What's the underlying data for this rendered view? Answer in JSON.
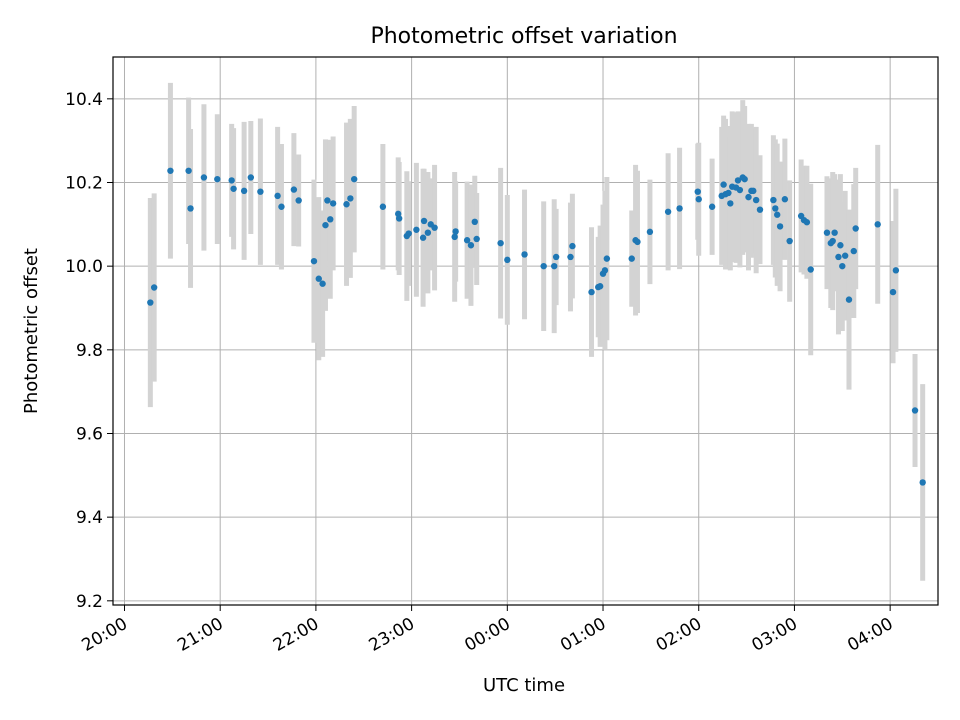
{
  "chart_data": {
    "type": "scatter",
    "title": "Photometric offset variation",
    "xlabel": "UTC time",
    "ylabel": "Photometric offset",
    "x_unit": "hours since 20:00 UTC",
    "xlim": [
      -0.12,
      8.5
    ],
    "ylim": [
      9.19,
      10.5
    ],
    "xticks": [
      {
        "t": 0,
        "label": "20:00"
      },
      {
        "t": 1,
        "label": "21:00"
      },
      {
        "t": 2,
        "label": "22:00"
      },
      {
        "t": 3,
        "label": "23:00"
      },
      {
        "t": 4,
        "label": "00:00"
      },
      {
        "t": 5,
        "label": "01:00"
      },
      {
        "t": 6,
        "label": "02:00"
      },
      {
        "t": 7,
        "label": "03:00"
      },
      {
        "t": 8,
        "label": "04:00"
      }
    ],
    "yticks": [
      {
        "v": 9.2,
        "label": "9.2"
      },
      {
        "v": 9.4,
        "label": "9.4"
      },
      {
        "v": 9.6,
        "label": "9.6"
      },
      {
        "v": 9.8,
        "label": "9.8"
      },
      {
        "v": 10.0,
        "label": "10.0"
      },
      {
        "v": 10.2,
        "label": "10.2"
      },
      {
        "v": 10.4,
        "label": "10.4"
      }
    ],
    "grid": true,
    "marker_color": "#1f77b4",
    "errorbar_color": "#d3d3d3",
    "points": [
      [
        0.27,
        9.913,
        0.25
      ],
      [
        0.31,
        9.949,
        0.225
      ],
      [
        0.48,
        10.228,
        0.21
      ],
      [
        0.67,
        10.228,
        0.175
      ],
      [
        0.69,
        10.138,
        0.19
      ],
      [
        0.83,
        10.212,
        0.175
      ],
      [
        0.97,
        10.208,
        0.155
      ],
      [
        1.12,
        10.205,
        0.135
      ],
      [
        1.14,
        10.185,
        0.145
      ],
      [
        1.25,
        10.18,
        0.165
      ],
      [
        1.32,
        10.212,
        0.135
      ],
      [
        1.42,
        10.178,
        0.175
      ],
      [
        1.6,
        10.168,
        0.165
      ],
      [
        1.64,
        10.142,
        0.15
      ],
      [
        1.77,
        10.183,
        0.135
      ],
      [
        1.82,
        10.157,
        0.11
      ],
      [
        1.98,
        10.012,
        0.195
      ],
      [
        2.03,
        9.97,
        0.195
      ],
      [
        2.07,
        9.958,
        0.175
      ],
      [
        2.1,
        10.098,
        0.205
      ],
      [
        2.12,
        10.157,
        0.145
      ],
      [
        2.15,
        10.112,
        0.19
      ],
      [
        2.18,
        10.15,
        0.16
      ],
      [
        2.32,
        10.148,
        0.195
      ],
      [
        2.36,
        10.162,
        0.19
      ],
      [
        2.4,
        10.208,
        0.175
      ],
      [
        2.7,
        10.142,
        0.15
      ],
      [
        2.86,
        10.125,
        0.135
      ],
      [
        2.87,
        10.114,
        0.135
      ],
      [
        2.95,
        10.072,
        0.155
      ],
      [
        2.97,
        10.078,
        0.125
      ],
      [
        3.05,
        10.087,
        0.16
      ],
      [
        3.12,
        10.068,
        0.165
      ],
      [
        3.13,
        10.108,
        0.125
      ],
      [
        3.17,
        10.08,
        0.145
      ],
      [
        3.2,
        10.1,
        0.11
      ],
      [
        3.24,
        10.092,
        0.15
      ],
      [
        3.45,
        10.07,
        0.155
      ],
      [
        3.46,
        10.083,
        0.12
      ],
      [
        3.58,
        10.062,
        0.14
      ],
      [
        3.62,
        10.05,
        0.145
      ],
      [
        3.66,
        10.106,
        0.11
      ],
      [
        3.68,
        10.065,
        0.11
      ],
      [
        3.93,
        10.055,
        0.18
      ],
      [
        4.0,
        10.015,
        0.155
      ],
      [
        4.18,
        10.028,
        0.155
      ],
      [
        4.38,
        10.0,
        0.155
      ],
      [
        4.49,
        10.0,
        0.16
      ],
      [
        4.51,
        10.022,
        0.115
      ],
      [
        4.66,
        10.022,
        0.13
      ],
      [
        4.68,
        10.048,
        0.125
      ],
      [
        4.88,
        9.938,
        0.155
      ],
      [
        4.95,
        9.95,
        0.12
      ],
      [
        4.97,
        9.952,
        0.145
      ],
      [
        5.0,
        9.982,
        0.165
      ],
      [
        5.02,
        9.99,
        0.19
      ],
      [
        5.04,
        10.018,
        0.195
      ],
      [
        5.3,
        10.018,
        0.115
      ],
      [
        5.34,
        10.062,
        0.18
      ],
      [
        5.36,
        10.058,
        0.17
      ],
      [
        5.49,
        10.082,
        0.125
      ],
      [
        5.68,
        10.13,
        0.14
      ],
      [
        5.8,
        10.138,
        0.145
      ],
      [
        5.99,
        10.178,
        0.115
      ],
      [
        6.0,
        10.16,
        0.135
      ],
      [
        6.14,
        10.142,
        0.115
      ],
      [
        6.24,
        10.168,
        0.165
      ],
      [
        6.26,
        10.195,
        0.165
      ],
      [
        6.28,
        10.172,
        0.18
      ],
      [
        6.31,
        10.175,
        0.16
      ],
      [
        6.33,
        10.15,
        0.16
      ],
      [
        6.35,
        10.19,
        0.18
      ],
      [
        6.39,
        10.188,
        0.18
      ],
      [
        6.41,
        10.205,
        0.165
      ],
      [
        6.43,
        10.182,
        0.185
      ],
      [
        6.46,
        10.212,
        0.185
      ],
      [
        6.48,
        10.208,
        0.175
      ],
      [
        6.52,
        10.165,
        0.175
      ],
      [
        6.55,
        10.18,
        0.16
      ],
      [
        6.57,
        10.18,
        0.15
      ],
      [
        6.6,
        10.158,
        0.175
      ],
      [
        6.64,
        10.135,
        0.13
      ],
      [
        6.78,
        10.158,
        0.155
      ],
      [
        6.8,
        10.138,
        0.165
      ],
      [
        6.82,
        10.123,
        0.17
      ],
      [
        6.85,
        10.095,
        0.155
      ],
      [
        6.9,
        10.16,
        0.145
      ],
      [
        6.95,
        10.06,
        0.145
      ],
      [
        7.07,
        10.12,
        0.135
      ],
      [
        7.1,
        10.11,
        0.13
      ],
      [
        7.13,
        10.105,
        0.135
      ],
      [
        7.17,
        9.992,
        0.205
      ],
      [
        7.34,
        10.08,
        0.135
      ],
      [
        7.38,
        10.055,
        0.155
      ],
      [
        7.4,
        10.06,
        0.165
      ],
      [
        7.42,
        10.08,
        0.14
      ],
      [
        7.46,
        10.022,
        0.185
      ],
      [
        7.48,
        10.05,
        0.17
      ],
      [
        7.5,
        10.0,
        0.155
      ],
      [
        7.53,
        10.025,
        0.155
      ],
      [
        7.57,
        9.92,
        0.215
      ],
      [
        7.62,
        10.036,
        0.16
      ],
      [
        7.64,
        10.09,
        0.145
      ],
      [
        7.87,
        10.1,
        0.19
      ],
      [
        8.03,
        9.938,
        0.17
      ],
      [
        8.06,
        9.99,
        0.195
      ],
      [
        8.26,
        9.655,
        0.135
      ],
      [
        8.34,
        9.483,
        0.235
      ]
    ]
  }
}
